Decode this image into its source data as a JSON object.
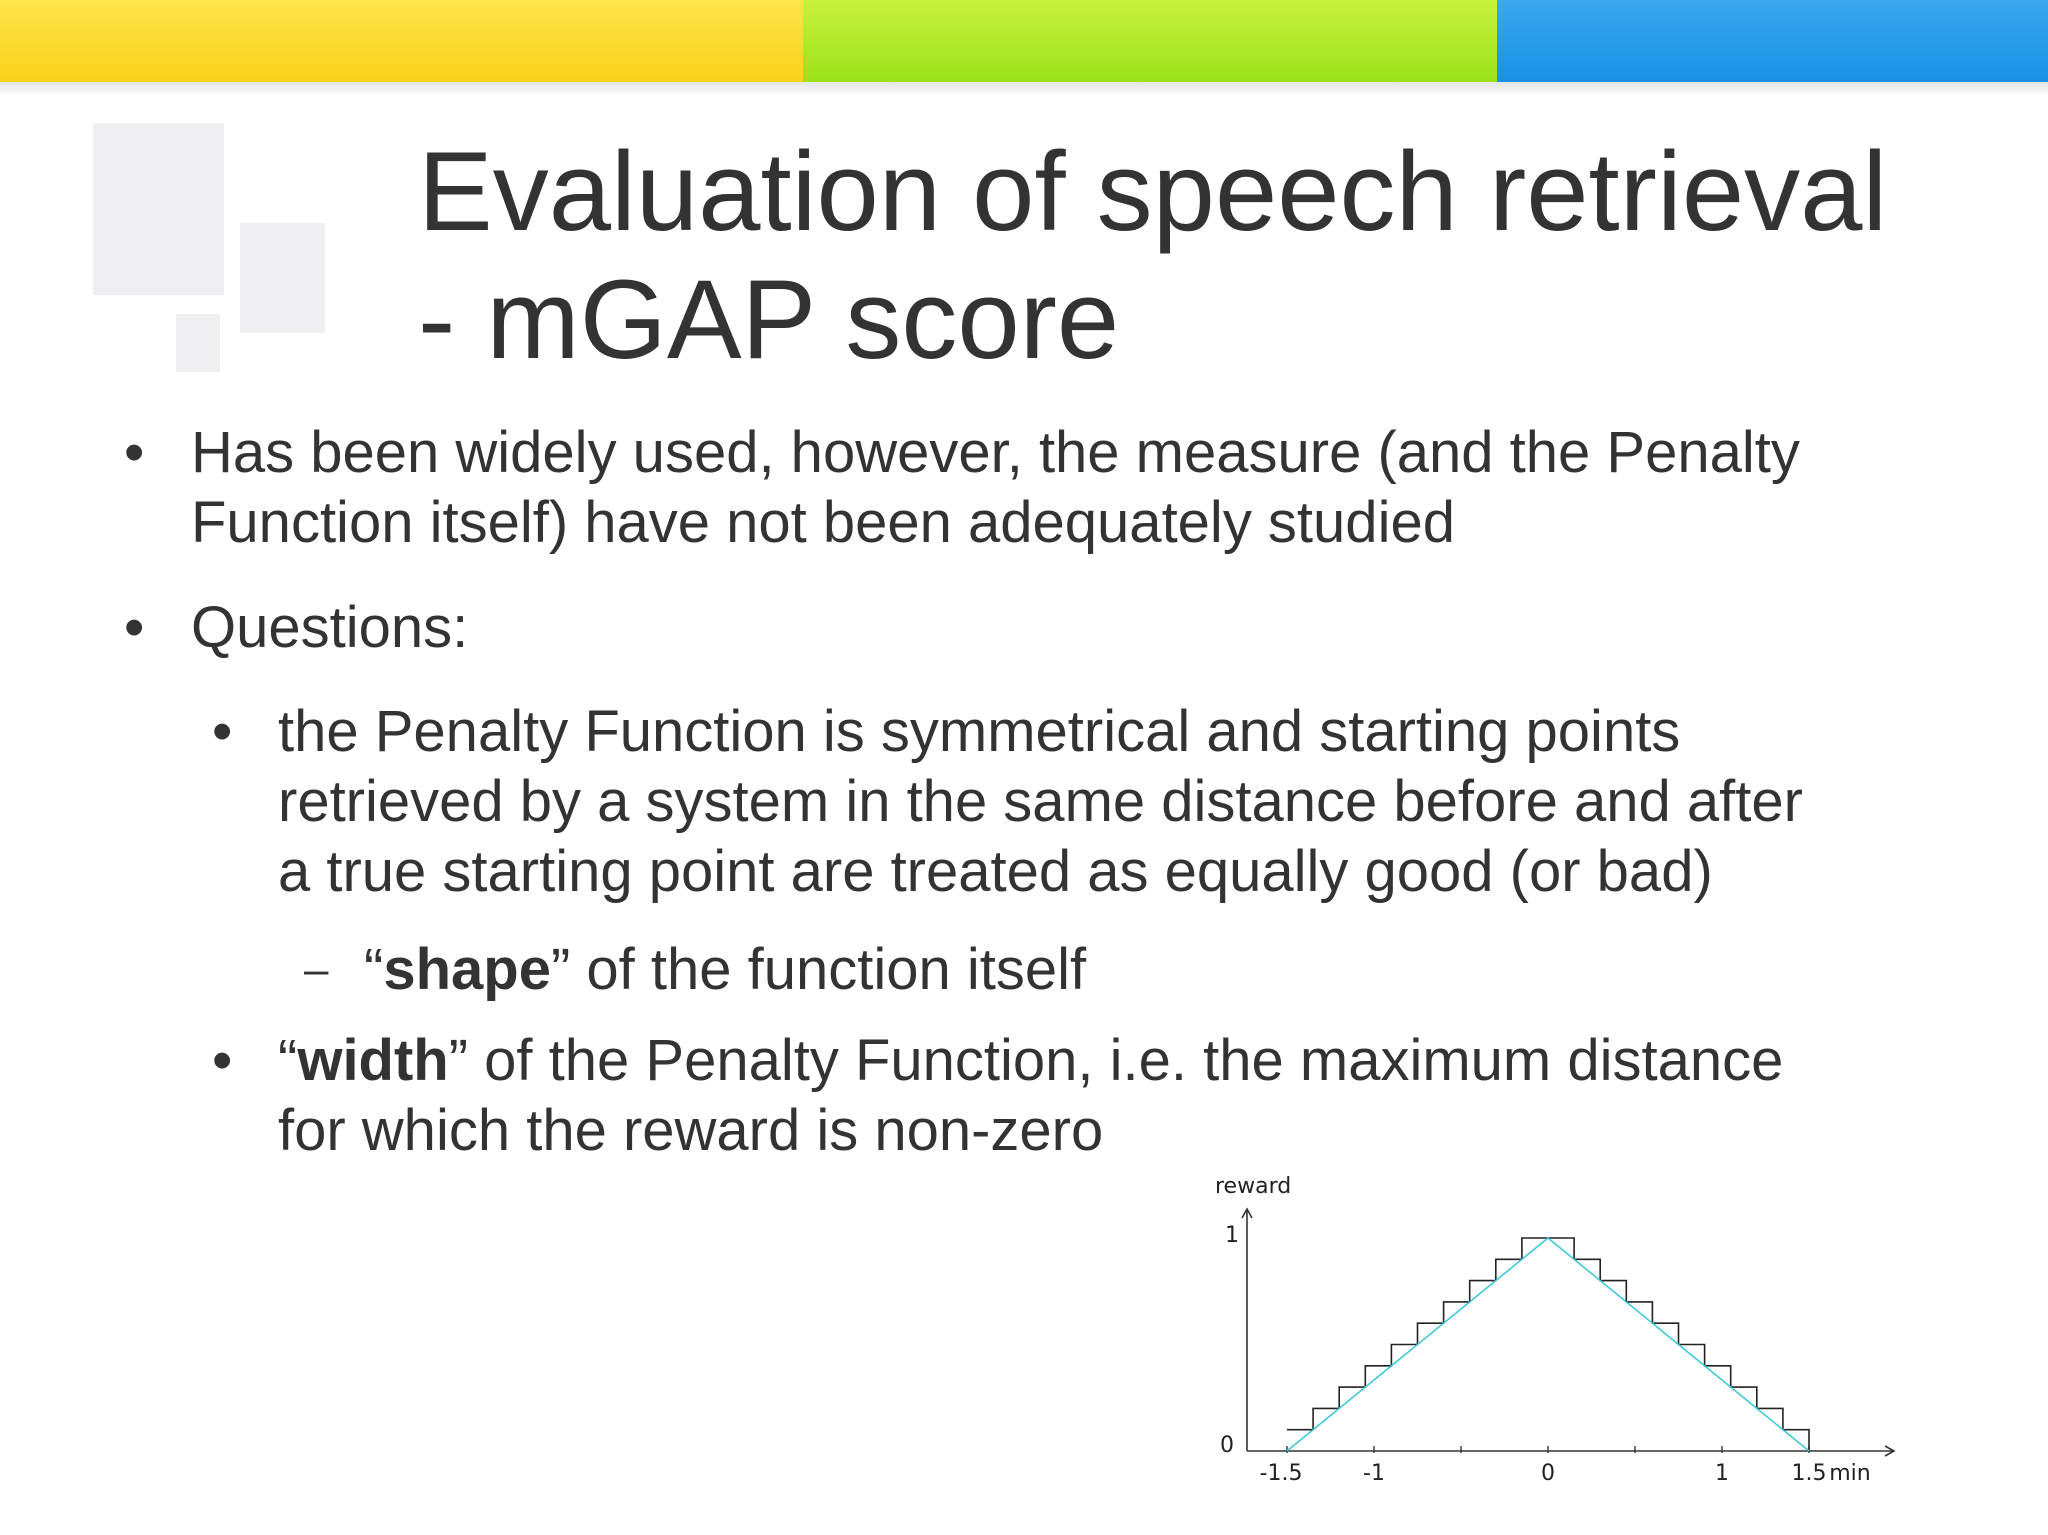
{
  "slide": {
    "title_line1": "Evaluation of speech retrieval",
    "title_line2": "- mGAP score",
    "bullets": [
      {
        "marker": "•",
        "lines": [
          "Has been widely used, however, the measure (and the Penalty",
          "Function itself) have not been adequately studied"
        ]
      },
      {
        "marker": "•",
        "lines": [
          "Questions:"
        ]
      }
    ],
    "sub_bullet_1": {
      "marker": "•",
      "lines": [
        "the Penalty Function is symmetrical and starting points",
        "retrieved by a system in the same distance before and after",
        "a true starting point are treated as equally good (or bad)"
      ]
    },
    "dash_item": {
      "marker": "–",
      "open_quote": "“",
      "bold": "shape",
      "rest": "” of the function itself"
    },
    "sub_bullet_2": {
      "marker": "•",
      "open_quote": "“",
      "bold": "width",
      "rest_line1": "” of the Penalty Function, i.e. the maximum distance",
      "line2": "for which the reward is non-zero"
    }
  },
  "chart_data": {
    "type": "line",
    "ylabel": "reward",
    "xlabel": "min",
    "x_tick_labels": [
      "-1.5",
      "-1",
      "0",
      "1",
      "1.5"
    ],
    "y_tick_labels": [
      "0",
      "1"
    ],
    "xlim": [
      -1.5,
      1.5
    ],
    "ylim": [
      0,
      1
    ],
    "series": [
      {
        "style": "step",
        "color": "#222222",
        "x": [
          -1.5,
          -1.35,
          -1.35,
          -1.2,
          -1.2,
          -1.05,
          -1.05,
          -0.9,
          -0.9,
          -0.75,
          -0.75,
          -0.6,
          -0.6,
          -0.45,
          -0.45,
          -0.3,
          -0.3,
          -0.15,
          -0.15,
          0.15,
          0.15,
          0.3,
          0.3,
          0.45,
          0.45,
          0.6,
          0.6,
          0.75,
          0.75,
          0.9,
          0.9,
          1.05,
          1.05,
          1.2,
          1.2,
          1.35,
          1.35,
          1.5,
          1.5
        ],
        "y": [
          0.1,
          0.1,
          0.2,
          0.2,
          0.3,
          0.3,
          0.4,
          0.4,
          0.5,
          0.5,
          0.6,
          0.6,
          0.7,
          0.7,
          0.8,
          0.8,
          0.9,
          0.9,
          1.0,
          1.0,
          0.9,
          0.9,
          0.8,
          0.8,
          0.7,
          0.7,
          0.6,
          0.6,
          0.5,
          0.5,
          0.4,
          0.4,
          0.3,
          0.3,
          0.2,
          0.2,
          0.1,
          0.1,
          0.0
        ]
      },
      {
        "style": "linear",
        "color": "#3fc9d9",
        "x": [
          -1.5,
          0,
          1.5
        ],
        "y": [
          0,
          1,
          0
        ]
      }
    ]
  }
}
